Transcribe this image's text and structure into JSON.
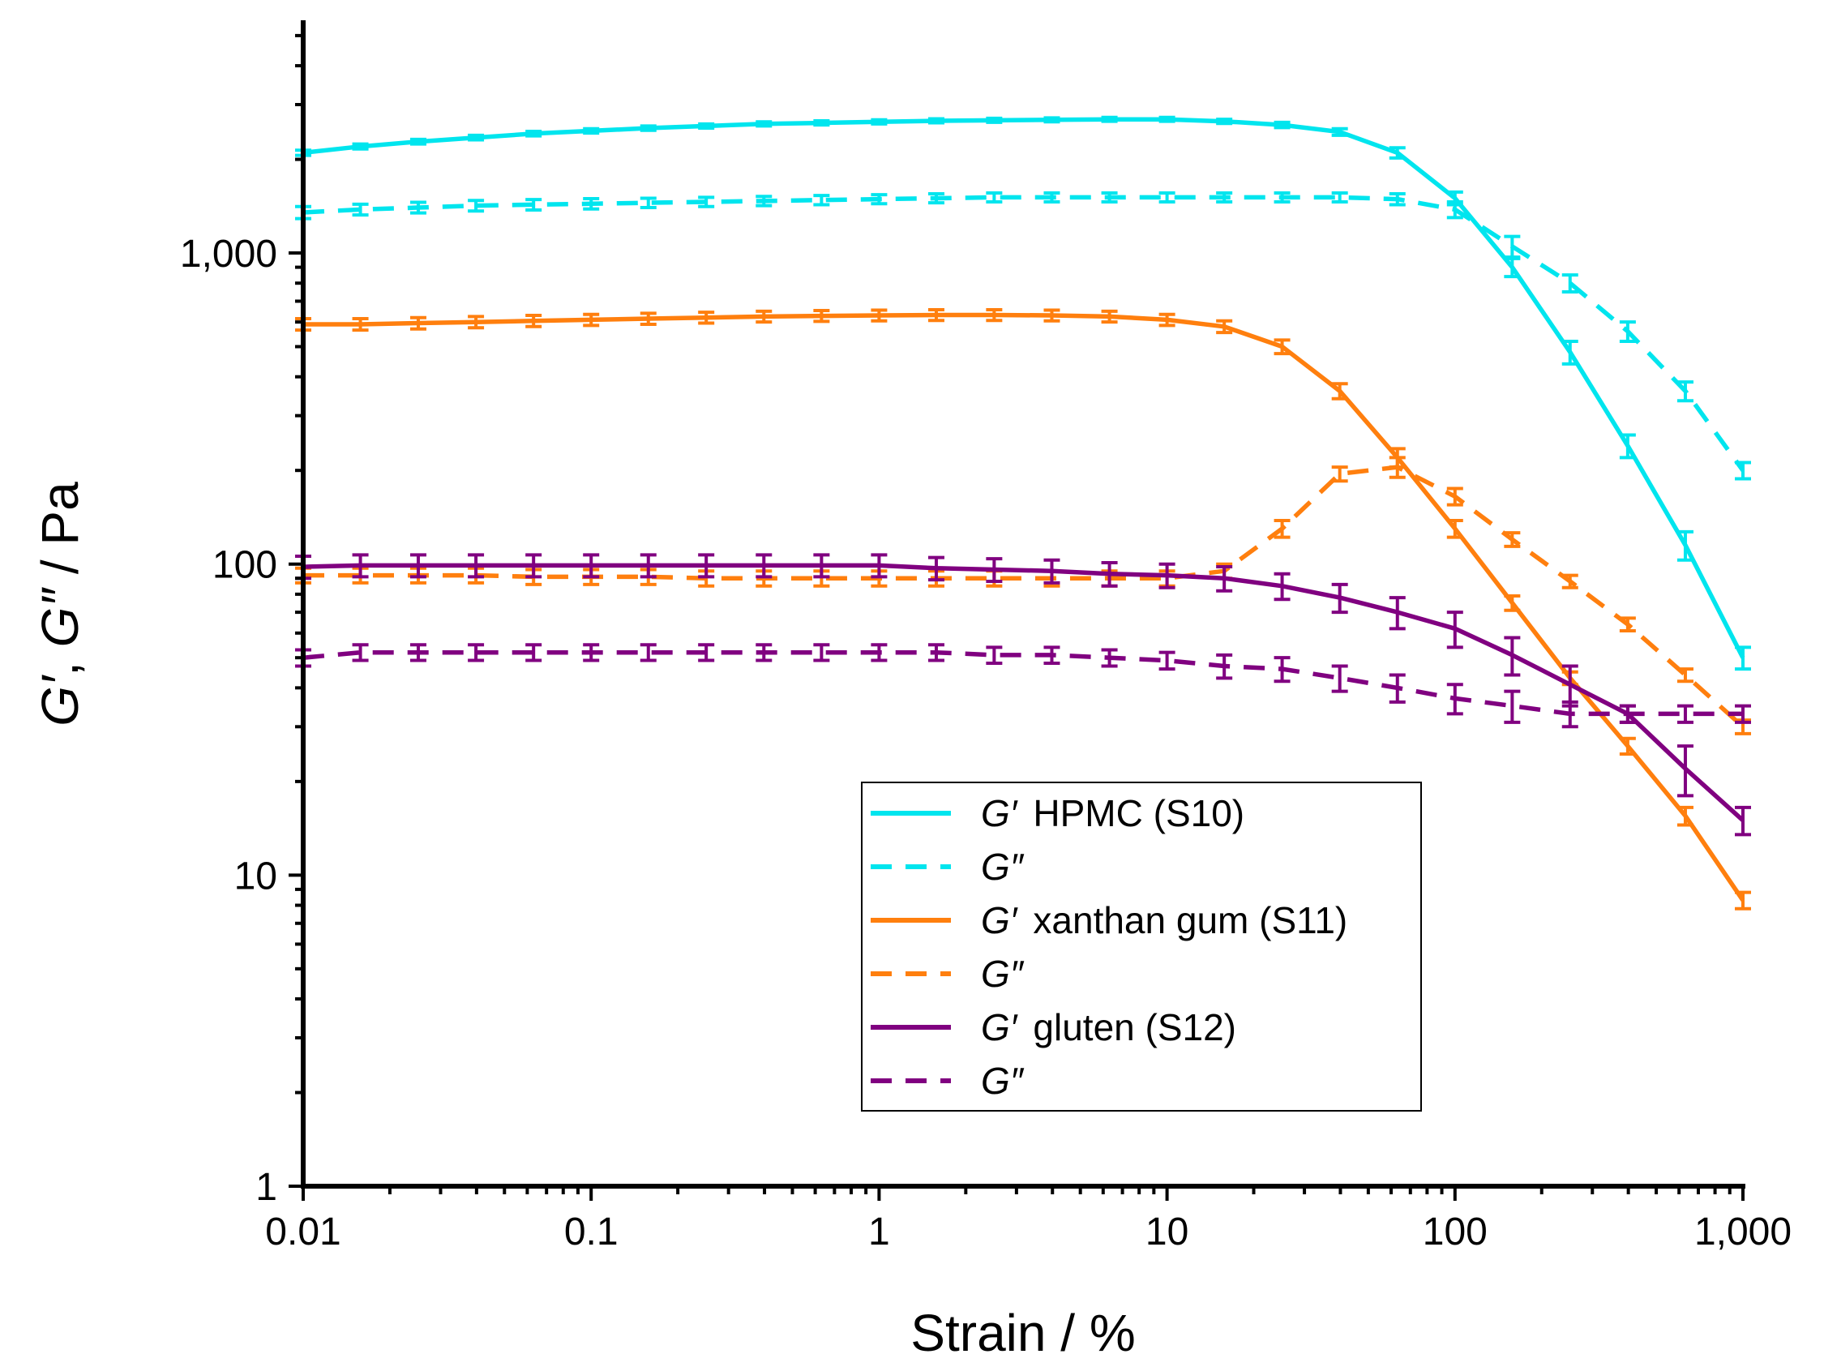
{
  "chart_data": {
    "type": "line",
    "xscale": "log",
    "yscale": "log",
    "xlabel": "Strain / %",
    "ylabel": "G′, G″ / Pa",
    "ylabel_parts": [
      "G′",
      ", ",
      "G″",
      " / Pa"
    ],
    "xlim": [
      0.01,
      1000
    ],
    "ylim": [
      1,
      5500
    ],
    "x_ticks": [
      {
        "value": 0.01,
        "label": "0.01"
      },
      {
        "value": 0.1,
        "label": "0.1"
      },
      {
        "value": 1,
        "label": "1"
      },
      {
        "value": 10,
        "label": "10"
      },
      {
        "value": 100,
        "label": "100"
      },
      {
        "value": 1000,
        "label": "1,000"
      }
    ],
    "y_ticks": [
      {
        "value": 1,
        "label": "1"
      },
      {
        "value": 10,
        "label": "10"
      },
      {
        "value": 100,
        "label": "100"
      },
      {
        "value": 1000,
        "label": "1,000"
      }
    ],
    "x": [
      0.01,
      0.0158,
      0.0251,
      0.0398,
      0.0631,
      0.1,
      0.158,
      0.251,
      0.398,
      0.631,
      1,
      1.58,
      2.51,
      3.98,
      6.31,
      10,
      15.8,
      25.1,
      39.8,
      63.1,
      100,
      158,
      251,
      398,
      631,
      1000
    ],
    "series": [
      {
        "name": "G′ HPMC (S10)",
        "modulus": "G′",
        "sample": "HPMC (S10)",
        "color": "#00e5ee",
        "dash": "solid",
        "values": [
          2100,
          2200,
          2280,
          2350,
          2420,
          2470,
          2520,
          2560,
          2600,
          2620,
          2640,
          2660,
          2670,
          2680,
          2690,
          2690,
          2650,
          2580,
          2450,
          2100,
          1500,
          900,
          480,
          240,
          115,
          50
        ],
        "errors": [
          40,
          40,
          40,
          40,
          40,
          40,
          40,
          40,
          40,
          40,
          40,
          40,
          40,
          40,
          40,
          40,
          40,
          50,
          60,
          80,
          70,
          60,
          40,
          20,
          12,
          4
        ]
      },
      {
        "name": "G″",
        "modulus": "G″",
        "sample": "",
        "color": "#00e5ee",
        "dash": "dashed",
        "values": [
          1350,
          1380,
          1400,
          1420,
          1430,
          1440,
          1450,
          1460,
          1470,
          1480,
          1490,
          1500,
          1510,
          1510,
          1510,
          1510,
          1510,
          1510,
          1510,
          1490,
          1380,
          1050,
          800,
          560,
          360,
          200
        ],
        "errors": [
          60,
          55,
          55,
          55,
          55,
          55,
          50,
          50,
          50,
          50,
          50,
          50,
          50,
          50,
          50,
          50,
          50,
          50,
          50,
          60,
          80,
          80,
          50,
          40,
          25,
          12
        ]
      },
      {
        "name": "G′ xanthan gum (S11)",
        "modulus": "G′",
        "sample": "xanthan gum (S11)",
        "color": "#ff7f0e",
        "dash": "solid",
        "values": [
          590,
          590,
          595,
          600,
          605,
          610,
          615,
          620,
          625,
          628,
          630,
          632,
          632,
          630,
          625,
          610,
          580,
          500,
          360,
          220,
          130,
          75,
          43,
          26,
          15.5,
          8.3
        ],
        "errors": [
          25,
          25,
          25,
          25,
          25,
          25,
          25,
          25,
          25,
          25,
          25,
          25,
          25,
          25,
          25,
          25,
          25,
          25,
          20,
          15,
          8,
          4,
          2,
          1.5,
          1,
          0.5
        ]
      },
      {
        "name": "G″",
        "modulus": "G″",
        "sample": "",
        "color": "#ff7f0e",
        "dash": "dashed",
        "values": [
          92,
          92,
          92,
          92,
          91,
          91,
          91,
          90,
          90,
          90,
          90,
          90,
          90,
          90,
          90,
          90,
          95,
          130,
          195,
          205,
          165,
          120,
          88,
          64,
          44,
          30
        ],
        "errors": [
          5,
          5,
          5,
          5,
          5,
          5,
          5,
          5,
          5,
          5,
          5,
          5,
          5,
          5,
          5,
          5,
          5,
          8,
          10,
          15,
          10,
          6,
          4,
          3,
          2,
          1.5
        ]
      },
      {
        "name": "G′ gluten (S12)",
        "modulus": "G′",
        "sample": "gluten (S12)",
        "color": "#800080",
        "dash": "solid",
        "values": [
          98,
          99,
          99,
          99,
          99,
          99,
          99,
          99,
          99,
          99,
          99,
          97,
          96,
          95,
          93,
          92,
          90,
          85,
          78,
          70,
          62,
          51,
          41,
          33,
          22,
          15
        ],
        "errors": [
          8,
          8,
          8,
          8,
          8,
          8,
          8,
          8,
          8,
          8,
          8,
          8,
          8,
          8,
          8,
          8,
          8,
          8,
          8,
          8,
          8,
          7,
          6,
          2,
          4,
          1.5
        ]
      },
      {
        "name": "G″",
        "modulus": "G″",
        "sample": "",
        "color": "#800080",
        "dash": "dashed",
        "values": [
          50,
          52,
          52,
          52,
          52,
          52,
          52,
          52,
          52,
          52,
          52,
          52,
          51,
          51,
          50,
          49,
          47,
          46,
          43,
          40,
          37,
          35,
          33,
          33,
          33,
          33
        ],
        "errors": [
          3,
          3,
          3,
          3,
          3,
          3,
          3,
          3,
          3,
          3,
          3,
          3,
          3,
          3,
          3,
          3,
          4,
          4,
          4,
          4,
          4,
          4,
          3,
          2,
          2,
          2
        ]
      }
    ],
    "legend_position": "lower-center",
    "grid": false
  }
}
